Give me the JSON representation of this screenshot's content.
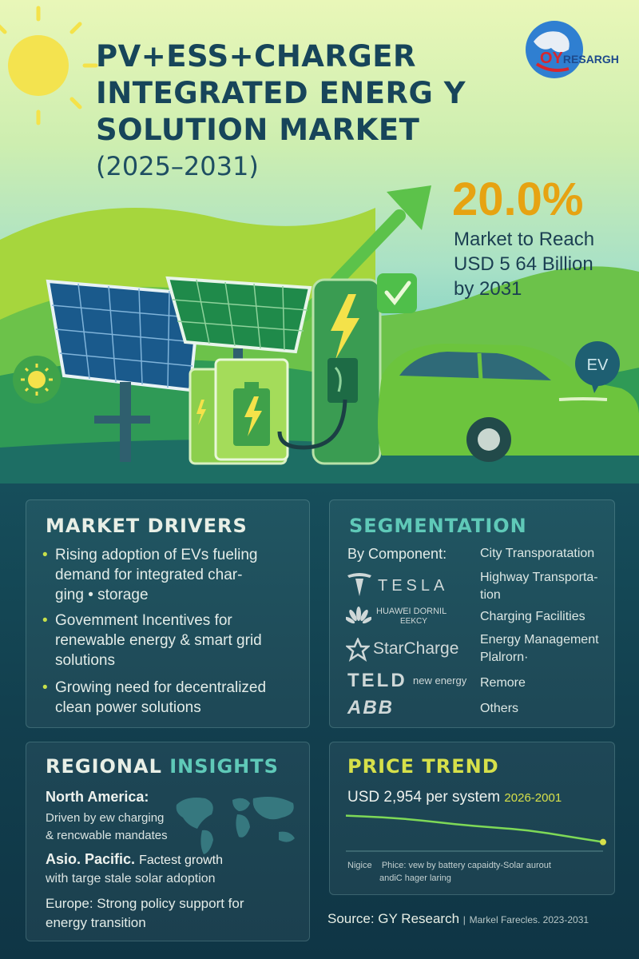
{
  "title": {
    "line1": "PV+ESS+CHARGER",
    "line2": "INTEGRATED ENERG Y",
    "line3": "SOLUTION MARKET",
    "years": "(2025–2031)"
  },
  "logo": {
    "prefix": "OY",
    "suffix": "RESARGH"
  },
  "stat": {
    "cagr": "20.0%",
    "line1": "Market to Reach",
    "line2": "USD 5 64 Billion",
    "line3": "by 2031"
  },
  "ev_badge": "EV",
  "drivers": {
    "title": "MARKET DRIVERS",
    "items": [
      {
        "lines": [
          "Rising adoption of EVs fueling",
          "demand for integrated char-",
          "ging  •  storage"
        ]
      },
      {
        "lines": [
          "Govemment Incentives for",
          "renewable energy & smart grid",
          "solutions"
        ]
      },
      {
        "lines": [
          "Growing need for decentralized",
          "clean power solutions"
        ]
      }
    ]
  },
  "segmentation": {
    "title": "SEGMENTATION",
    "by_component_label": "By Component:",
    "brands": [
      "TESLA",
      "HUAWEI DORNIL",
      "EEKCY",
      "StarCharge",
      "TELD",
      "new energy",
      "ABB"
    ],
    "applications": [
      "City Transporatation",
      "Highway Transporta-",
      "tion",
      "Charging Facilities",
      "Energy Management",
      "Plalrorn·",
      "Remore",
      "Others"
    ]
  },
  "regional": {
    "title_part1": "REGIONAL",
    "title_part2": "INSIGHTS",
    "north_america": {
      "head": "North America:",
      "desc1": "Driven by ew charging",
      "desc2": "& rencwable mandates"
    },
    "asia_pacific": {
      "head": "Asio. Pacific.",
      "head_rest": "Factest growth",
      "desc": "with targe stale solar adoption"
    },
    "europe": {
      "line1": "Europe: Strong policy support for",
      "line2": "energy transition"
    }
  },
  "price": {
    "title": "PRICE TREND",
    "value": "USD 2,954 per system",
    "range": "2026-2001",
    "note_label": "Nigice",
    "note_line1": "Phice: vew by battery capaidty-Solar aurout",
    "note_line2": "andiC hager laring"
  },
  "source": {
    "main": "Source: GY Research",
    "extra": "Markel Farecles. 2023-2031"
  },
  "chart_data": {
    "type": "line",
    "title": "",
    "series": [
      {
        "values": [
          1.0,
          0.99,
          0.97,
          0.94,
          0.92,
          0.9,
          0.86,
          0.82
        ]
      }
    ]
  },
  "colors": {
    "title": "#17455a",
    "accent_orange": "#e6a312",
    "teal": "#5fc9b8",
    "lime": "#d6e04a",
    "panel_bg": "#164e5b"
  }
}
